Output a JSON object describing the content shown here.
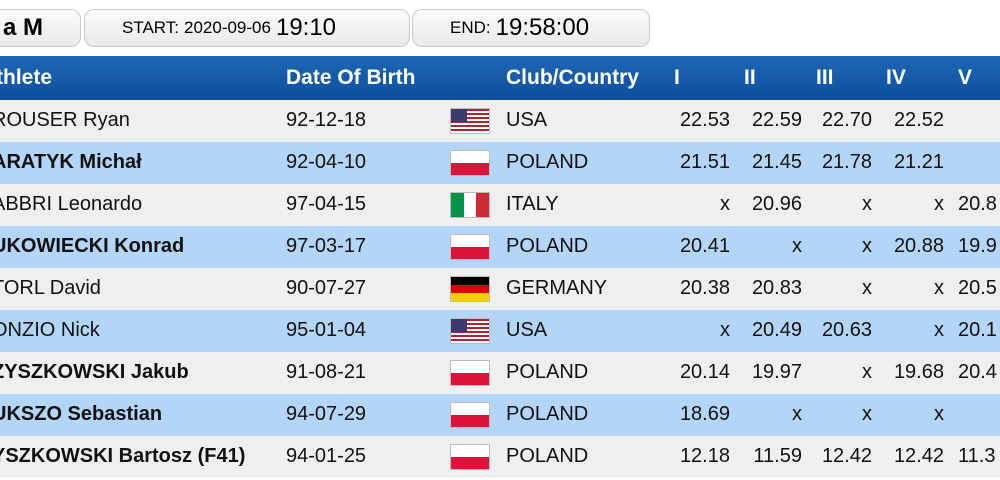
{
  "top": {
    "title": "a M",
    "start_label": "START:",
    "start_date": "2020-09-06",
    "start_time": "19:10",
    "end_label": "END:",
    "end_time": "19:58:00"
  },
  "columns": {
    "athlete": "thlete",
    "dob": "Date Of Birth",
    "club": "Club/Country",
    "r1": "I",
    "r2": "II",
    "r3": "III",
    "r4": "IV",
    "r5": "V"
  },
  "rows": [
    {
      "name": "ROUSER Ryan",
      "dob": "92-12-18",
      "flag": "usa-flag-icon",
      "country": "USA",
      "r": [
        "22.53",
        "22.59",
        "22.70",
        "22.52",
        ""
      ]
    },
    {
      "name": "ARATYK Michał",
      "dob": "92-04-10",
      "flag": "poland-flag-icon",
      "country": "POLAND",
      "r": [
        "21.51",
        "21.45",
        "21.78",
        "21.21",
        ""
      ]
    },
    {
      "name": "ABBRI Leonardo",
      "dob": "97-04-15",
      "flag": "italy-flag-icon",
      "country": "ITALY",
      "r": [
        "x",
        "20.96",
        "x",
        "x",
        "20.8"
      ]
    },
    {
      "name": "UKOWIECKI Konrad",
      "dob": "97-03-17",
      "flag": "poland-flag-icon",
      "country": "POLAND",
      "r": [
        "20.41",
        "x",
        "x",
        "20.88",
        "19.9"
      ]
    },
    {
      "name": "TORL David",
      "dob": "90-07-27",
      "flag": "germany-flag-icon",
      "country": "GERMANY",
      "r": [
        "20.38",
        "20.83",
        "x",
        "x",
        "20.5"
      ]
    },
    {
      "name": "ONZIO Nick",
      "dob": "95-01-04",
      "flag": "usa-flag-icon",
      "country": "USA",
      "r": [
        "x",
        "20.49",
        "20.63",
        "x",
        "20.1"
      ]
    },
    {
      "name": "ZYSZKOWSKI Jakub",
      "dob": "91-08-21",
      "flag": "poland-flag-icon",
      "country": "POLAND",
      "r": [
        "20.14",
        "19.97",
        "x",
        "19.68",
        "20.4"
      ]
    },
    {
      "name": "UKSZO Sebastian",
      "dob": "94-07-29",
      "flag": "poland-flag-icon",
      "country": "POLAND",
      "r": [
        "18.69",
        "x",
        "x",
        "x",
        ""
      ]
    },
    {
      "name": "YSZKOWSKI Bartosz (F41)",
      "dob": "94-01-25",
      "flag": "poland-flag-icon",
      "country": "POLAND",
      "r": [
        "12.18",
        "11.59",
        "12.42",
        "12.42",
        "11.3"
      ]
    }
  ],
  "colors": {
    "header_top": "#1f67b6",
    "header_bottom": "#0d4f9e",
    "row_light": "#efefef",
    "row_blue": "#b3d5f7"
  }
}
